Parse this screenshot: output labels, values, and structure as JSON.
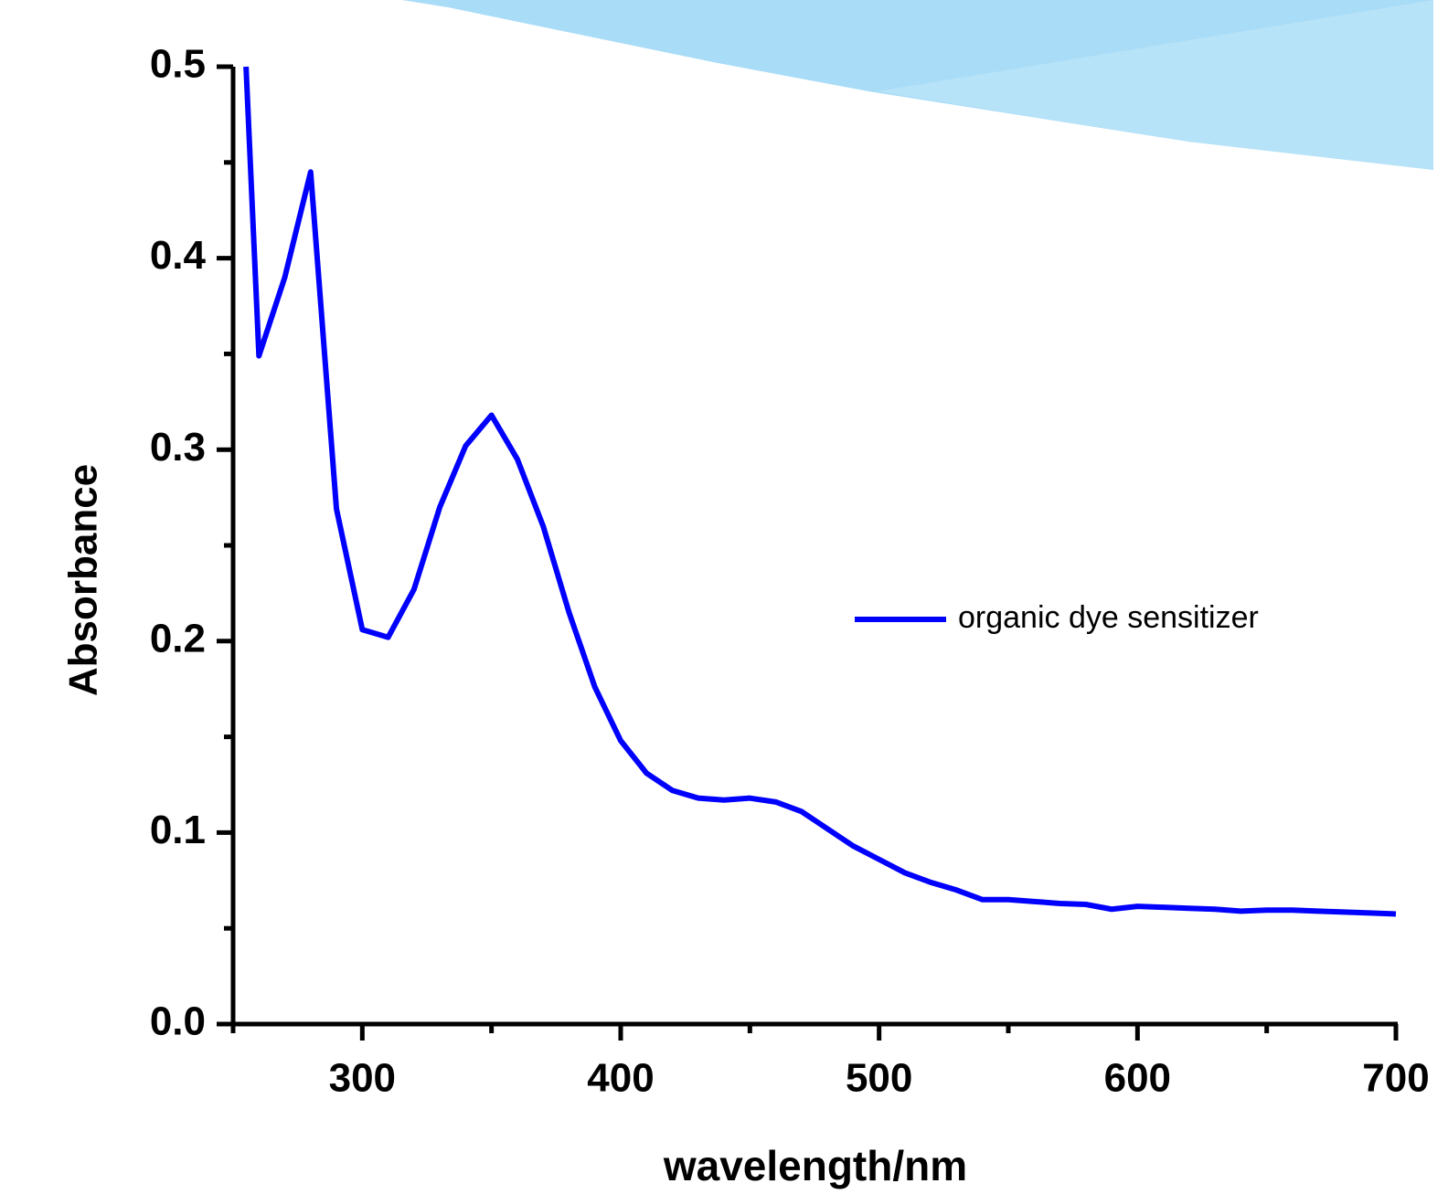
{
  "chart_data": {
    "type": "line",
    "x_label": "wavelength/nm",
    "y_label": "Absorbance",
    "x": [
      255,
      260,
      270,
      280,
      290,
      300,
      310,
      320,
      330,
      340,
      350,
      360,
      370,
      380,
      390,
      400,
      410,
      420,
      430,
      440,
      450,
      460,
      470,
      480,
      490,
      500,
      510,
      520,
      530,
      540,
      550,
      560,
      570,
      580,
      590,
      600,
      610,
      620,
      630,
      640,
      650,
      660,
      670,
      680,
      690,
      700
    ],
    "series": [
      {
        "name": "organic dye sensitizer",
        "color": "#0000ff",
        "values": [
          0.5,
          0.349,
          0.39,
          0.445,
          0.269,
          0.206,
          0.202,
          0.227,
          0.27,
          0.302,
          0.318,
          0.295,
          0.26,
          0.215,
          0.176,
          0.148,
          0.131,
          0.122,
          0.118,
          0.117,
          0.118,
          0.116,
          0.111,
          0.102,
          0.093,
          0.086,
          0.079,
          0.074,
          0.07,
          0.065,
          0.065,
          0.064,
          0.063,
          0.0625,
          0.06,
          0.0615,
          0.061,
          0.0605,
          0.06,
          0.059,
          0.0595,
          0.0595,
          0.059,
          0.0585,
          0.058,
          0.0575
        ]
      }
    ],
    "xlim": [
      250,
      700
    ],
    "ylim": [
      0,
      0.5
    ],
    "xticks": [
      300,
      400,
      500,
      600,
      700
    ],
    "xminorticks": [
      250,
      350,
      450,
      550,
      650
    ],
    "yticks": [
      {
        "value": 0,
        "label": "0.0"
      },
      0.1,
      0.2,
      0.3,
      0.4,
      0.5
    ],
    "yminorticks": [
      0.05,
      0.15,
      0.25,
      0.35,
      0.45
    ],
    "legend": "right"
  }
}
